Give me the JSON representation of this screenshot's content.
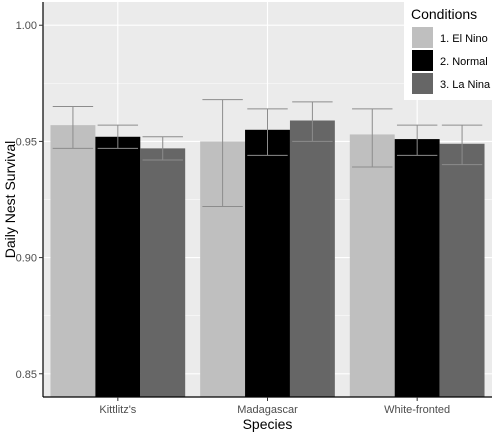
{
  "chart_data": {
    "type": "bar",
    "xlabel": "Species",
    "ylabel": "Daily Nest Survival",
    "categories": [
      "Kittlitz's",
      "Madagascar",
      "White-fronted"
    ],
    "ylim": [
      0.84,
      1.01
    ],
    "yticks": [
      0.85,
      0.9,
      0.95,
      1.0
    ],
    "ytick_labels": [
      "0.85",
      "0.90",
      "0.95",
      "1.00"
    ],
    "grid": true,
    "legend": {
      "title": "Conditions",
      "placement": "top-right"
    },
    "series": [
      {
        "name": "1. El Nino",
        "color": "#bfbfbf",
        "values": [
          0.957,
          0.95,
          0.953
        ],
        "err_low": [
          0.947,
          0.922,
          0.939
        ],
        "err_high": [
          0.965,
          0.968,
          0.964
        ]
      },
      {
        "name": "2. Normal",
        "color": "#000000",
        "values": [
          0.952,
          0.955,
          0.951
        ],
        "err_low": [
          0.947,
          0.944,
          0.944
        ],
        "err_high": [
          0.957,
          0.964,
          0.957
        ]
      },
      {
        "name": "3. La Nina",
        "color": "#666666",
        "values": [
          0.947,
          0.959,
          0.949
        ],
        "err_low": [
          0.942,
          0.95,
          0.94
        ],
        "err_high": [
          0.952,
          0.967,
          0.957
        ]
      }
    ],
    "colors": {
      "panel": "#ebebeb",
      "grid": "#ffffff",
      "errorbar": "#8c8c8c",
      "axis": "#000000"
    }
  }
}
